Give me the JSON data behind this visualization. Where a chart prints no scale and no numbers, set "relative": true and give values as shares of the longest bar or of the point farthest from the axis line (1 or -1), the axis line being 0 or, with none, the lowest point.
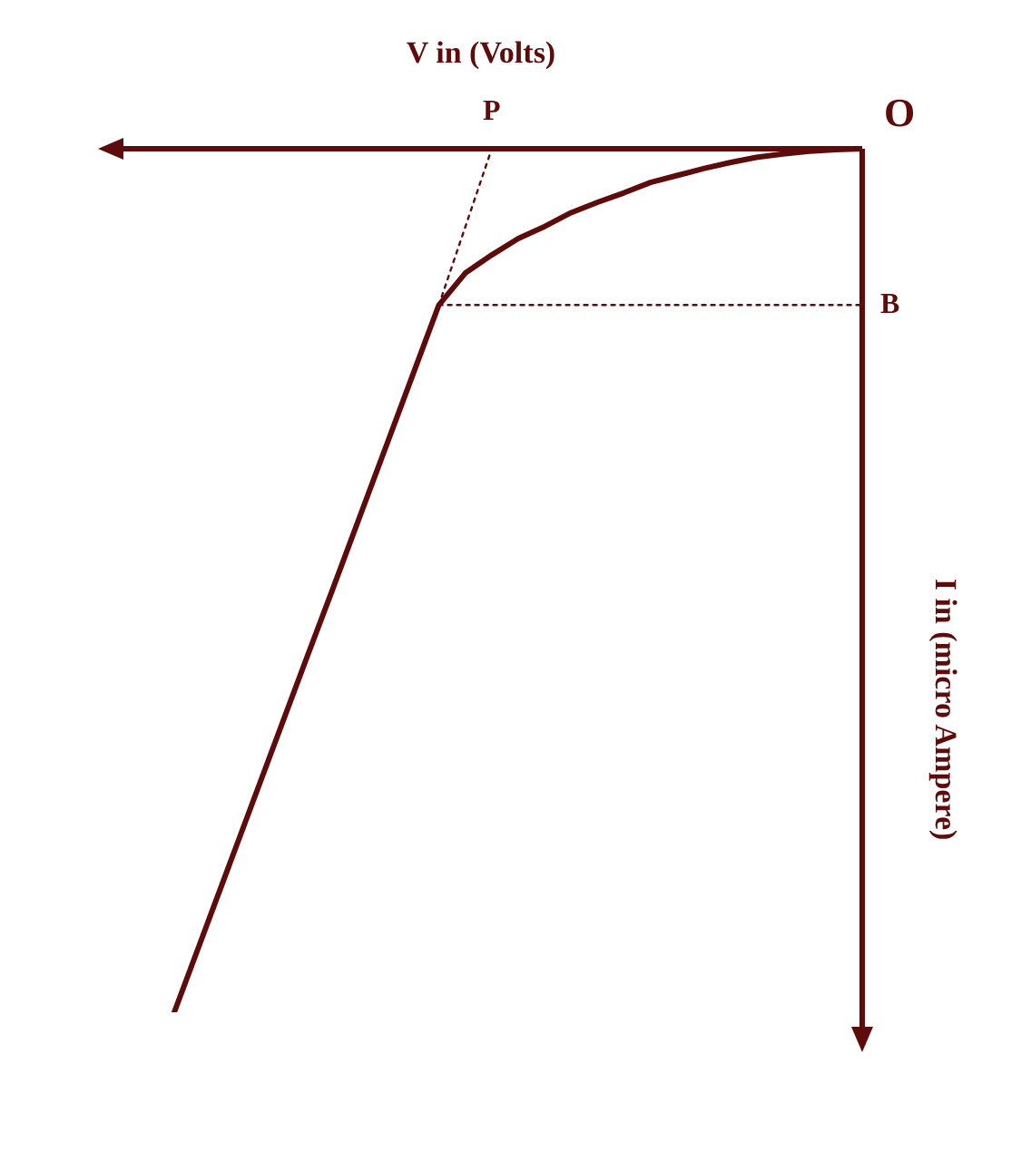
{
  "chart_data": {
    "type": "line",
    "relative": true,
    "xlabel": "V in (Volts)",
    "ylabel": "I in (micro Ampere)",
    "marker": "none",
    "categories": [
      null,
      null,
      null,
      null,
      null,
      null,
      null,
      null,
      null,
      null,
      null,
      null,
      null,
      null,
      null,
      null,
      null,
      null,
      null,
      null,
      null,
      null,
      null,
      null,
      null,
      null,
      null
    ],
    "series": [
      {
        "color": "#5e0b0b",
        "line_style": "solid",
        "values": [
          -1,
          -0.918,
          -0.836,
          -0.754,
          -0.672,
          -0.59,
          -0.509,
          -0.427,
          -0.345,
          -0.263,
          -0.181,
          -0.144,
          -0.123,
          -0.104,
          -0.09,
          -0.074,
          -0.062,
          -0.051,
          -0.039,
          -0.031,
          -0.023,
          -0.016,
          -0.01,
          -0.006,
          -0.003,
          -0.001,
          0
        ]
      },
      {
        "name": "P",
        "color": "#5e0b0b",
        "line_style": "dotted",
        "values": [
          null,
          null,
          null,
          null,
          null,
          null,
          null,
          null,
          null,
          null,
          -0.181,
          -0.0905,
          0,
          null,
          null,
          null,
          null,
          null,
          null,
          null,
          null,
          null,
          null,
          null,
          null,
          null,
          null
        ]
      },
      {
        "name": "B",
        "color": "#5e0b0b",
        "line_style": "dotted",
        "values": [
          null,
          null,
          null,
          null,
          null,
          null,
          null,
          null,
          null,
          null,
          -0.181,
          -0.181,
          -0.181,
          -0.181,
          -0.181,
          -0.181,
          -0.181,
          -0.181,
          -0.181,
          -0.181,
          -0.181,
          -0.181,
          -0.181,
          -0.181,
          -0.181,
          -0.181,
          -0.181
        ]
      }
    ],
    "annotations": [
      "O"
    ]
  }
}
